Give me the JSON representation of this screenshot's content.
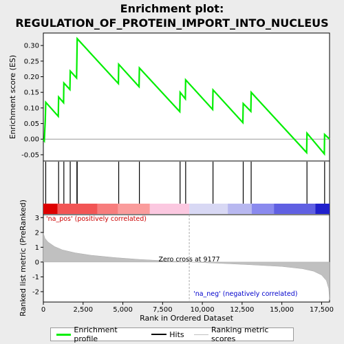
{
  "chart_data": {
    "type": "line",
    "title_line1": "Enrichment plot:",
    "title_line2": "REGULATION_OF_PROTEIN_IMPORT_INTO_NUCLEUS",
    "top_panel": {
      "ylabel": "Enrichment score (ES)",
      "ylim": [
        -0.07,
        0.34
      ],
      "yticks": [
        -0.05,
        0.0,
        0.05,
        0.1,
        0.15,
        0.2,
        0.25,
        0.3
      ],
      "ytick_labels": [
        "-0.05",
        "0.00",
        "0.05",
        "0.10",
        "0.15",
        "0.20",
        "0.25",
        "0.30"
      ],
      "series_name": "Enrichment profile",
      "line_color": "#00ee00",
      "profile": [
        [
          0,
          0.0
        ],
        [
          60,
          -0.005
        ],
        [
          120,
          0.06
        ],
        [
          150,
          0.118
        ],
        [
          940,
          0.073
        ],
        [
          960,
          0.135
        ],
        [
          1270,
          0.117
        ],
        [
          1290,
          0.18
        ],
        [
          1670,
          0.159
        ],
        [
          1690,
          0.218
        ],
        [
          2090,
          0.196
        ],
        [
          2110,
          0.262
        ],
        [
          2130,
          0.322
        ],
        [
          4720,
          0.178
        ],
        [
          4740,
          0.24
        ],
        [
          6020,
          0.168
        ],
        [
          6040,
          0.228
        ],
        [
          8580,
          0.088
        ],
        [
          8600,
          0.15
        ],
        [
          8930,
          0.129
        ],
        [
          8950,
          0.19
        ],
        [
          10650,
          0.095
        ],
        [
          10670,
          0.158
        ],
        [
          12550,
          0.053
        ],
        [
          12570,
          0.114
        ],
        [
          13050,
          0.089
        ],
        [
          13070,
          0.15
        ],
        [
          16560,
          -0.043
        ],
        [
          16580,
          0.019
        ],
        [
          17670,
          -0.047
        ],
        [
          17690,
          0.015
        ],
        [
          18000,
          0.0
        ]
      ]
    },
    "hits": {
      "series_name": "Hits",
      "positions": [
        150,
        960,
        1290,
        1690,
        2110,
        2130,
        4740,
        6040,
        8600,
        8950,
        10670,
        12570,
        13070,
        16580,
        17690
      ]
    },
    "bottom_panel": {
      "ylabel": "Ranked list metric (PreRanked)",
      "xlabel": "Rank in Ordered Dataset",
      "ylim": [
        -2.7,
        3.2
      ],
      "yticks": [
        -2,
        -1,
        0,
        1,
        2,
        3
      ],
      "ytick_labels": [
        "-2",
        "-1",
        "0",
        "1",
        "2",
        "3"
      ],
      "series_name": "Ranking metric scores",
      "fill_color": "#c0c0c0",
      "metric": [
        [
          0,
          1.95
        ],
        [
          100,
          1.6
        ],
        [
          300,
          1.35
        ],
        [
          700,
          1.05
        ],
        [
          1200,
          0.82
        ],
        [
          2000,
          0.62
        ],
        [
          3000,
          0.46
        ],
        [
          4500,
          0.3
        ],
        [
          6000,
          0.18
        ],
        [
          7500,
          0.09
        ],
        [
          9177,
          0.0
        ],
        [
          11000,
          -0.08
        ],
        [
          13000,
          -0.18
        ],
        [
          15000,
          -0.3
        ],
        [
          16300,
          -0.45
        ],
        [
          17000,
          -0.62
        ],
        [
          17500,
          -0.88
        ],
        [
          17800,
          -1.25
        ],
        [
          17950,
          -1.8
        ],
        [
          18000,
          -2.55
        ]
      ],
      "zero_cross_rank": 9177,
      "zero_cross_label": "Zero cross at 9177",
      "pos_label": "'na_pos' (positively correlated)",
      "neg_label": "'na_neg' (negatively correlated)",
      "pos_label_color": "#cc0000",
      "neg_label_color": "#0000cc"
    },
    "xaxis": {
      "xlim": [
        0,
        18000
      ],
      "xticks": [
        0,
        2500,
        5000,
        7500,
        10000,
        12500,
        15000,
        17500
      ],
      "xtick_labels": [
        "0",
        "2,500",
        "5,000",
        "7,500",
        "10,000",
        "12,500",
        "15,000",
        "17,500"
      ]
    },
    "color_bar": {
      "segments": [
        {
          "start": 0,
          "end": 900,
          "color": "#dd0000"
        },
        {
          "start": 900,
          "end": 3400,
          "color": "#f25555"
        },
        {
          "start": 3400,
          "end": 4700,
          "color": "#f77d7d"
        },
        {
          "start": 4700,
          "end": 6700,
          "color": "#fa9c9c"
        },
        {
          "start": 6700,
          "end": 9177,
          "color": "#fbc8e0"
        },
        {
          "start": 9177,
          "end": 11600,
          "color": "#d8d8f4"
        },
        {
          "start": 11600,
          "end": 13100,
          "color": "#b8b8f0"
        },
        {
          "start": 13100,
          "end": 14500,
          "color": "#8a8aee"
        },
        {
          "start": 14500,
          "end": 17100,
          "color": "#6060e2"
        },
        {
          "start": 17100,
          "end": 18000,
          "color": "#2020cc"
        }
      ]
    },
    "legend": {
      "items": [
        {
          "label": "Enrichment profile",
          "color": "#00ee00"
        },
        {
          "label": "Hits",
          "color": "#000000"
        },
        {
          "label": "Ranking metric scores",
          "color": "#c0c0c0"
        }
      ]
    }
  }
}
